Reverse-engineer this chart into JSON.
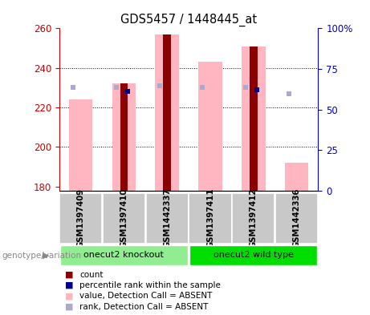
{
  "title": "GDS5457 / 1448445_at",
  "samples": [
    "GSM1397409",
    "GSM1397410",
    "GSM1442337",
    "GSM1397411",
    "GSM1397412",
    "GSM1442336"
  ],
  "groups": [
    {
      "label": "onecut2 knockout",
      "samples": [
        0,
        1,
        2
      ],
      "color": "#90EE90"
    },
    {
      "label": "onecut2 wild type",
      "samples": [
        3,
        4,
        5
      ],
      "color": "#00DD00"
    }
  ],
  "ylim_left": [
    178,
    260
  ],
  "ylim_right": [
    0,
    100
  ],
  "yticks_left": [
    180,
    200,
    220,
    240,
    260
  ],
  "yticks_right": [
    0,
    25,
    50,
    75,
    100
  ],
  "ytick_labels_right": [
    "0",
    "25",
    "50",
    "75",
    "100%"
  ],
  "bar_bottom": 178,
  "count_values": [
    null,
    232,
    257,
    null,
    251,
    null
  ],
  "count_color": "#8B0000",
  "percentile_values": [
    null,
    228,
    null,
    null,
    229,
    null
  ],
  "percentile_color": "#00008B",
  "absent_value_values": [
    224,
    232,
    257,
    243,
    251,
    192
  ],
  "absent_value_color": "#FFB6C1",
  "absent_rank_values": [
    230,
    230,
    231,
    230,
    230,
    227
  ],
  "absent_rank_color": "#AAAACC",
  "left_axis_color": "#CC0000",
  "right_axis_color": "#0000CC",
  "grid_color": "black",
  "grid_lw": 0.7,
  "grid_yticks": [
    200,
    220,
    240
  ],
  "group_label_text": "genotype/variation",
  "legend_items": [
    {
      "color": "#8B0000",
      "label": "count"
    },
    {
      "color": "#00008B",
      "label": "percentile rank within the sample"
    },
    {
      "color": "#FFB6C1",
      "label": "value, Detection Call = ABSENT"
    },
    {
      "color": "#AAAACC",
      "label": "rank, Detection Call = ABSENT"
    }
  ]
}
